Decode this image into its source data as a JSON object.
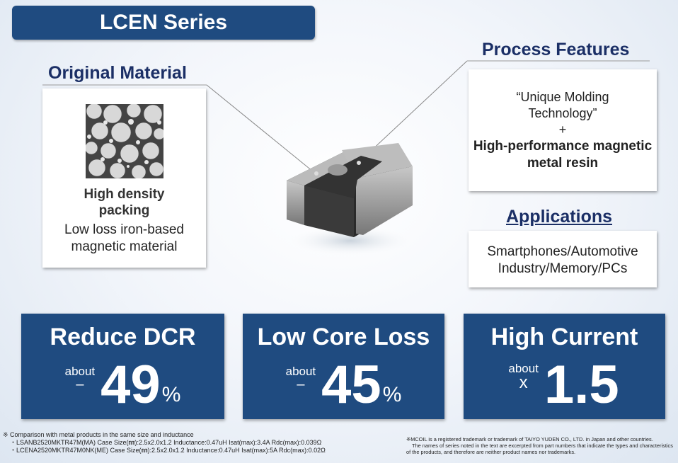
{
  "title": "LCEN Series",
  "original_material": {
    "heading": "Original Material",
    "bold": "High density packing",
    "text": "Low loss iron-based magnetic material"
  },
  "process_features": {
    "heading": "Process Features",
    "line1": "“Unique Molding Technology”",
    "plus": "+",
    "bold": "High-performance magnetic metal resin"
  },
  "applications": {
    "heading": "Applications",
    "text": "Smartphones/Automotive Industry/Memory/PCs"
  },
  "features": [
    {
      "title": "Reduce DCR",
      "about": "about",
      "sign": "–",
      "value": "49",
      "unit": "%"
    },
    {
      "title": "Low Core Loss",
      "about": "about",
      "sign": "–",
      "value": "45",
      "unit": "%"
    },
    {
      "title": "High Current",
      "about": "about",
      "sign": "x",
      "value": "1.5",
      "unit": ""
    }
  ],
  "footnotes": {
    "comparison": "※ Comparison with metal products in the same size and inductance",
    "item1": "・LSANB2520MKTR47M(MA) Case Size(㎜):2.5x2.0x1.2 Inductance:0.47uH Isat(max):3.4A Rdc(max):0.039Ω",
    "item2": "・LCENA2520MKTR47M0NK(ME) Case Size(㎜):2.5x2.0x1.2 Inductance:0.47uH Isat(max):5A Rdc(max):0.02Ω",
    "trademark1": "※MCOIL is a registered trademark or trademark of TAIYO YUDEN CO., LTD. in Japan and other countries.",
    "trademark2": "The names of series noted in the text are excerpted from part numbers that indicate the types and characteristics of the products, and therefore are neither product names nor trademarks."
  },
  "colors": {
    "navy": "#1f4b80",
    "heading": "#1b2f66"
  }
}
